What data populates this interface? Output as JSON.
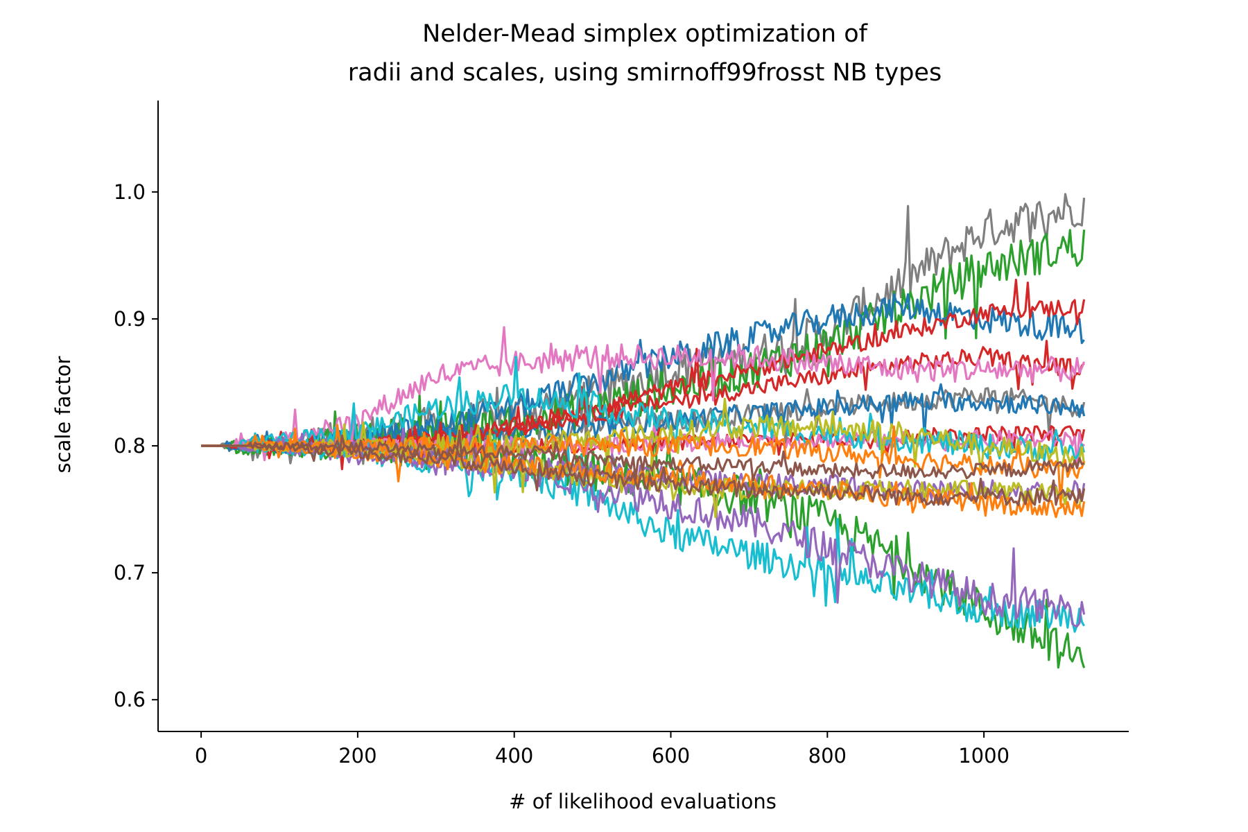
{
  "chart_data": {
    "type": "line",
    "title": [
      "Nelder-Mead simplex optimization of",
      "radii and scales, using smirnoff99frosst NB types"
    ],
    "xlabel": "# of likelihood evaluations",
    "ylabel": "scale factor",
    "xlim": [
      -55,
      1185
    ],
    "ylim": [
      0.575,
      1.072
    ],
    "xticks": [
      0,
      200,
      400,
      600,
      800,
      1000
    ],
    "xtick_labels": [
      "0",
      "200",
      "400",
      "600",
      "800",
      "1000"
    ],
    "yticks": [
      0.6,
      0.7,
      0.8,
      0.9,
      1.0
    ],
    "ytick_labels": [
      "0.6",
      "0.7",
      "0.8",
      "0.9",
      "1.0"
    ],
    "grid": false,
    "legend": "none",
    "spines": [
      "left",
      "bottom"
    ],
    "start_value": 0.8,
    "last_x": 1130,
    "series": [
      {
        "color": "#7f7f7f",
        "x": [
          0,
          100,
          200,
          300,
          400,
          500,
          600,
          700,
          800,
          900,
          1000,
          1130
        ],
        "values": [
          0.8,
          0.8,
          0.81,
          0.815,
          0.825,
          0.84,
          0.86,
          0.87,
          0.89,
          0.93,
          0.97,
          0.99
        ],
        "noise": 0.016
      },
      {
        "color": "#7f7f7f",
        "x": [
          0,
          100,
          200,
          300,
          400,
          500,
          600,
          700,
          800,
          900,
          1000,
          1130
        ],
        "values": [
          0.8,
          0.8,
          0.8,
          0.805,
          0.81,
          0.815,
          0.82,
          0.825,
          0.83,
          0.835,
          0.84,
          0.83
        ],
        "noise": 0.008
      },
      {
        "color": "#2ca02c",
        "x": [
          0,
          100,
          200,
          300,
          400,
          500,
          600,
          700,
          800,
          900,
          1000,
          1130
        ],
        "values": [
          0.8,
          0.8,
          0.805,
          0.81,
          0.815,
          0.83,
          0.845,
          0.86,
          0.88,
          0.91,
          0.94,
          0.96
        ],
        "noise": 0.016
      },
      {
        "color": "#2ca02c",
        "x": [
          0,
          100,
          200,
          300,
          400,
          500,
          600,
          700,
          800,
          900,
          1000,
          1130
        ],
        "values": [
          0.8,
          0.8,
          0.8,
          0.795,
          0.79,
          0.78,
          0.77,
          0.76,
          0.74,
          0.71,
          0.67,
          0.63
        ],
        "noise": 0.016
      },
      {
        "color": "#1f77b4",
        "x": [
          0,
          100,
          200,
          300,
          400,
          500,
          600,
          700,
          800,
          900,
          1000,
          1130
        ],
        "values": [
          0.8,
          0.8,
          0.805,
          0.815,
          0.83,
          0.85,
          0.87,
          0.885,
          0.9,
          0.91,
          0.9,
          0.89
        ],
        "noise": 0.011
      },
      {
        "color": "#1f77b4",
        "x": [
          0,
          100,
          200,
          300,
          400,
          500,
          600,
          700,
          800,
          900,
          1000,
          1130
        ],
        "values": [
          0.8,
          0.8,
          0.8,
          0.805,
          0.81,
          0.815,
          0.82,
          0.825,
          0.83,
          0.835,
          0.835,
          0.83
        ],
        "noise": 0.008
      },
      {
        "color": "#d62728",
        "x": [
          0,
          100,
          200,
          300,
          400,
          500,
          600,
          700,
          800,
          900,
          1000,
          1130
        ],
        "values": [
          0.8,
          0.8,
          0.8,
          0.805,
          0.815,
          0.83,
          0.845,
          0.86,
          0.875,
          0.89,
          0.905,
          0.91
        ],
        "noise": 0.007
      },
      {
        "color": "#d62728",
        "x": [
          0,
          100,
          200,
          300,
          400,
          500,
          600,
          700,
          800,
          900,
          1000,
          1130
        ],
        "values": [
          0.8,
          0.8,
          0.8,
          0.805,
          0.815,
          0.825,
          0.835,
          0.845,
          0.855,
          0.865,
          0.87,
          0.86
        ],
        "noise": 0.007
      },
      {
        "color": "#d62728",
        "x": [
          0,
          100,
          200,
          300,
          400,
          500,
          600,
          700,
          800,
          900,
          1000,
          1130
        ],
        "values": [
          0.8,
          0.8,
          0.8,
          0.8,
          0.8,
          0.8,
          0.802,
          0.805,
          0.805,
          0.807,
          0.81,
          0.81
        ],
        "noise": 0.006
      },
      {
        "color": "#e377c2",
        "x": [
          0,
          100,
          200,
          300,
          400,
          500,
          600,
          700,
          800,
          900,
          1000,
          1130
        ],
        "values": [
          0.8,
          0.805,
          0.82,
          0.855,
          0.865,
          0.87,
          0.87,
          0.87,
          0.865,
          0.86,
          0.86,
          0.86
        ],
        "noise": 0.01
      },
      {
        "color": "#e377c2",
        "x": [
          0,
          100,
          200,
          300,
          400,
          500,
          600,
          700,
          800,
          900,
          1000,
          1130
        ],
        "values": [
          0.8,
          0.8,
          0.8,
          0.8,
          0.8,
          0.8,
          0.802,
          0.805,
          0.805,
          0.805,
          0.805,
          0.805
        ],
        "noise": 0.007
      },
      {
        "color": "#17becf",
        "x": [
          0,
          100,
          200,
          300,
          400,
          500,
          600,
          700,
          800,
          900,
          1000,
          1130
        ],
        "values": [
          0.8,
          0.805,
          0.81,
          0.83,
          0.84,
          0.83,
          0.82,
          0.815,
          0.81,
          0.805,
          0.8,
          0.795
        ],
        "noise": 0.01
      },
      {
        "color": "#17becf",
        "x": [
          0,
          100,
          200,
          300,
          400,
          500,
          600,
          700,
          800,
          900,
          1000,
          1130
        ],
        "values": [
          0.8,
          0.8,
          0.795,
          0.79,
          0.78,
          0.76,
          0.73,
          0.715,
          0.7,
          0.685,
          0.67,
          0.665
        ],
        "noise": 0.012
      },
      {
        "color": "#9467bd",
        "x": [
          0,
          100,
          200,
          300,
          400,
          500,
          600,
          700,
          800,
          900,
          1000,
          1130
        ],
        "values": [
          0.8,
          0.8,
          0.795,
          0.79,
          0.785,
          0.77,
          0.755,
          0.74,
          0.72,
          0.7,
          0.68,
          0.67
        ],
        "noise": 0.013
      },
      {
        "color": "#9467bd",
        "x": [
          0,
          100,
          200,
          300,
          400,
          500,
          600,
          700,
          800,
          900,
          1000,
          1130
        ],
        "values": [
          0.8,
          0.8,
          0.795,
          0.79,
          0.785,
          0.78,
          0.775,
          0.77,
          0.77,
          0.765,
          0.765,
          0.765
        ],
        "noise": 0.008
      },
      {
        "color": "#bcbd22",
        "x": [
          0,
          100,
          200,
          300,
          400,
          500,
          600,
          700,
          800,
          900,
          1000,
          1130
        ],
        "values": [
          0.8,
          0.8,
          0.8,
          0.8,
          0.8,
          0.805,
          0.81,
          0.815,
          0.815,
          0.81,
          0.8,
          0.79
        ],
        "noise": 0.009
      },
      {
        "color": "#bcbd22",
        "x": [
          0,
          100,
          200,
          300,
          400,
          500,
          600,
          700,
          800,
          900,
          1000,
          1130
        ],
        "values": [
          0.8,
          0.8,
          0.795,
          0.79,
          0.785,
          0.775,
          0.77,
          0.765,
          0.765,
          0.765,
          0.765,
          0.76
        ],
        "noise": 0.008
      },
      {
        "color": "#ff7f0e",
        "x": [
          0,
          100,
          200,
          300,
          400,
          500,
          600,
          700,
          800,
          900,
          1000,
          1130
        ],
        "values": [
          0.8,
          0.8,
          0.8,
          0.8,
          0.8,
          0.8,
          0.8,
          0.8,
          0.795,
          0.79,
          0.785,
          0.78
        ],
        "noise": 0.008
      },
      {
        "color": "#ff7f0e",
        "x": [
          0,
          100,
          200,
          300,
          400,
          500,
          600,
          700,
          800,
          900,
          1000,
          1130
        ],
        "values": [
          0.8,
          0.8,
          0.795,
          0.79,
          0.785,
          0.78,
          0.775,
          0.77,
          0.765,
          0.76,
          0.755,
          0.75
        ],
        "noise": 0.008
      },
      {
        "color": "#8c564b",
        "x": [
          0,
          100,
          200,
          300,
          400,
          500,
          600,
          700,
          800,
          900,
          1000,
          1130
        ],
        "values": [
          0.8,
          0.8,
          0.795,
          0.79,
          0.785,
          0.775,
          0.77,
          0.765,
          0.765,
          0.76,
          0.76,
          0.76
        ],
        "noise": 0.007
      },
      {
        "color": "#8c564b",
        "x": [
          0,
          100,
          200,
          300,
          400,
          500,
          600,
          700,
          800,
          900,
          1000,
          1130
        ],
        "values": [
          0.8,
          0.8,
          0.8,
          0.795,
          0.795,
          0.79,
          0.785,
          0.785,
          0.78,
          0.78,
          0.78,
          0.785
        ],
        "noise": 0.006
      }
    ]
  }
}
